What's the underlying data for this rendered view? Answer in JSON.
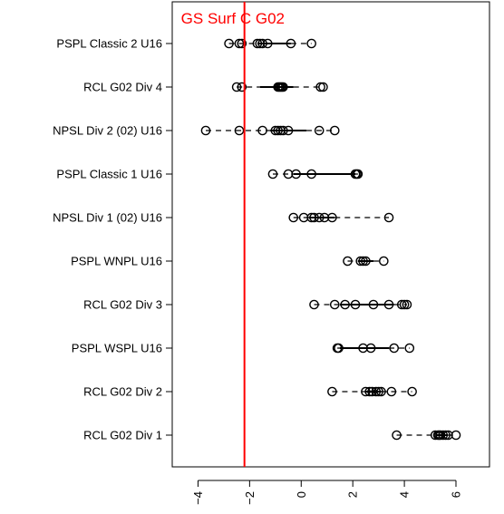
{
  "chart_data": {
    "type": "scatter",
    "title": "",
    "xlabel": "",
    "ylabel": "",
    "xlim": [
      -5.0,
      7.3
    ],
    "x_ticks": [
      -4,
      -2,
      0,
      2,
      4,
      6
    ],
    "categories": [
      "PSPL Classic 2 U16",
      "RCL G02 Div 4",
      "NPSL Div 2 (02) U16",
      "PSPL Classic 1 U16",
      "NPSL Div 1 (02) U16",
      "PSPL WNPL U16",
      "RCL G02 Div 3",
      "PSPL WSPL U16",
      "RCL G02 Div 2",
      "RCL G02 Div 1"
    ],
    "rows": [
      {
        "points": [
          -2.8,
          -2.4,
          -2.3,
          -1.7,
          -1.6,
          -1.5,
          -1.3,
          -0.4,
          0.4
        ],
        "whisker_low": -2.8,
        "q1": -1.7,
        "q3": -0.4,
        "whisker_high": 0.4
      },
      {
        "points": [
          -2.5,
          -2.3,
          -0.9,
          -0.85,
          -0.8,
          -0.75,
          -0.7,
          0.75,
          0.85
        ],
        "whisker_low": -2.5,
        "q1": -1.6,
        "q3": -0.3,
        "whisker_high": 0.8
      },
      {
        "points": [
          -3.7,
          -2.4,
          -1.5,
          -1.0,
          -0.9,
          -0.8,
          -0.7,
          -0.5,
          0.7,
          1.3
        ],
        "whisker_low": -3.7,
        "q1": -1.2,
        "q3": 0.2,
        "whisker_high": 1.3
      },
      {
        "points": [
          -1.1,
          -0.5,
          -0.2,
          0.4,
          2.1,
          2.15,
          2.2
        ],
        "whisker_low": -1.1,
        "q1": -0.3,
        "q3": 2.1,
        "whisker_high": 2.2
      },
      {
        "points": [
          -0.3,
          0.1,
          0.4,
          0.5,
          0.7,
          0.9,
          1.2,
          3.4
        ],
        "whisker_low": -0.3,
        "q1": 0.3,
        "q3": 1.3,
        "whisker_high": 3.4
      },
      {
        "points": [
          1.8,
          2.3,
          2.4,
          2.5,
          3.2
        ],
        "whisker_low": 1.8,
        "q1": 2.2,
        "q3": 2.8,
        "whisker_high": 3.2
      },
      {
        "points": [
          0.5,
          1.3,
          1.7,
          2.1,
          2.8,
          3.4,
          3.9,
          4.0,
          4.1
        ],
        "whisker_low": 0.5,
        "q1": 1.5,
        "q3": 3.6,
        "whisker_high": 4.1
      },
      {
        "points": [
          1.4,
          1.45,
          2.4,
          2.7,
          3.6,
          4.2
        ],
        "whisker_low": 1.4,
        "q1": 1.5,
        "q3": 3.4,
        "whisker_high": 4.2
      },
      {
        "points": [
          1.2,
          2.5,
          2.65,
          2.75,
          2.9,
          3.0,
          3.1,
          3.5,
          4.3
        ],
        "whisker_low": 1.2,
        "q1": 2.5,
        "q3": 3.1,
        "whisker_high": 4.3
      },
      {
        "points": [
          3.7,
          5.2,
          5.3,
          5.35,
          5.4,
          5.5,
          5.6,
          5.7,
          6.0
        ],
        "whisker_low": 3.7,
        "q1": 5.25,
        "q3": 5.65,
        "whisker_high": 6.0
      }
    ],
    "reference_line": {
      "x": -2.2,
      "label": "GS Surf C G02",
      "color": "#ff0000"
    },
    "grid": false
  }
}
